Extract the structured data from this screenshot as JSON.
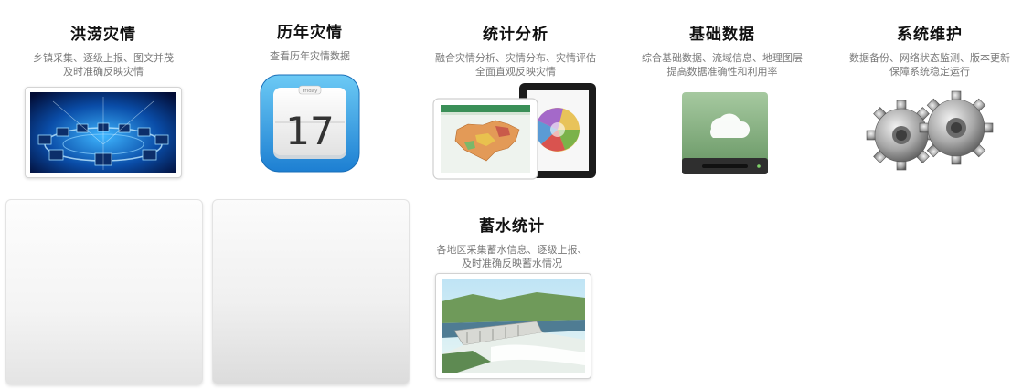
{
  "tiles": [
    {
      "title": "洪涝灾情",
      "desc1": "乡镇采集、逐级上报、图文并茂",
      "desc2": "及时准确反映灾情",
      "image": "network-monitors-photo"
    },
    {
      "title": "历年灾情",
      "desc1": "查看历年灾情数据",
      "desc2": "",
      "image": "calendar-icon",
      "calendar_day": "17"
    },
    {
      "title": "统计分析",
      "desc1": "融合灾情分析、灾情分布、灾情评估",
      "desc2": "全面直观反映灾情",
      "image": "tablet-charts-photo"
    },
    {
      "title": "基础数据",
      "desc1": "综合基础数据、流域信息、地理图层",
      "desc2": "提高数据准确性和利用率",
      "image": "cloud-drive-icon"
    },
    {
      "title": "系统维护",
      "desc1": "数据备份、网络状态监测、版本更新",
      "desc2": "保障系统稳定运行",
      "image": "gears-icon"
    },
    {
      "title": "蓄水统计",
      "desc1": "各地区采集蓄水信息、逐级上报、",
      "desc2": "及时准确反映蓄水情况",
      "image": "dam-photo"
    }
  ]
}
